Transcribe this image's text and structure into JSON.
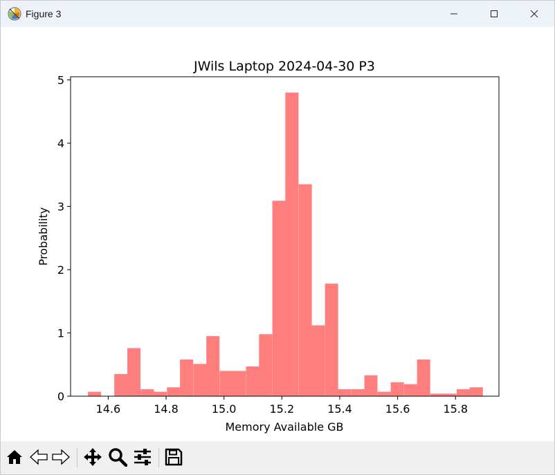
{
  "window": {
    "title": "Figure 3",
    "icons": [
      "matplotlib-logo-icon",
      "minimize-icon",
      "maximize-icon",
      "close-icon"
    ]
  },
  "toolbar": {
    "buttons": [
      "home-icon",
      "back-icon",
      "forward-icon",
      "pan-icon",
      "zoom-icon",
      "configure-subplots-icon",
      "save-icon"
    ]
  },
  "chart_data": {
    "type": "bar",
    "title": "JWils Laptop 2024-04-30 P3",
    "xlabel": "Memory Available GB",
    "ylabel": "Probability",
    "xlim": [
      14.47,
      15.95
    ],
    "ylim": [
      0,
      5.05
    ],
    "bin_width": 0.0455,
    "bar_color": "#ff7f7f",
    "xticks": [
      "14.6",
      "14.8",
      "15.0",
      "15.2",
      "15.4",
      "15.6",
      "15.8"
    ],
    "yticks": [
      "0",
      "1",
      "2",
      "3",
      "4",
      "5"
    ],
    "bins": [
      {
        "x": 14.53,
        "value": 0.07
      },
      {
        "x": 14.575,
        "value": 0.0
      },
      {
        "x": 14.621,
        "value": 0.35
      },
      {
        "x": 14.666,
        "value": 0.76
      },
      {
        "x": 14.712,
        "value": 0.11
      },
      {
        "x": 14.757,
        "value": 0.07
      },
      {
        "x": 14.803,
        "value": 0.14
      },
      {
        "x": 14.848,
        "value": 0.58
      },
      {
        "x": 14.894,
        "value": 0.51
      },
      {
        "x": 14.939,
        "value": 0.95
      },
      {
        "x": 14.985,
        "value": 0.4
      },
      {
        "x": 15.03,
        "value": 0.4
      },
      {
        "x": 15.076,
        "value": 0.47
      },
      {
        "x": 15.121,
        "value": 0.98
      },
      {
        "x": 15.167,
        "value": 3.09
      },
      {
        "x": 15.212,
        "value": 4.8
      },
      {
        "x": 15.258,
        "value": 3.35
      },
      {
        "x": 15.303,
        "value": 1.12
      },
      {
        "x": 15.349,
        "value": 1.78
      },
      {
        "x": 15.394,
        "value": 0.11
      },
      {
        "x": 15.44,
        "value": 0.11
      },
      {
        "x": 15.485,
        "value": 0.33
      },
      {
        "x": 15.531,
        "value": 0.07
      },
      {
        "x": 15.576,
        "value": 0.22
      },
      {
        "x": 15.622,
        "value": 0.19
      },
      {
        "x": 15.667,
        "value": 0.58
      },
      {
        "x": 15.713,
        "value": 0.04
      },
      {
        "x": 15.758,
        "value": 0.04
      },
      {
        "x": 15.804,
        "value": 0.11
      },
      {
        "x": 15.849,
        "value": 0.14
      }
    ]
  }
}
